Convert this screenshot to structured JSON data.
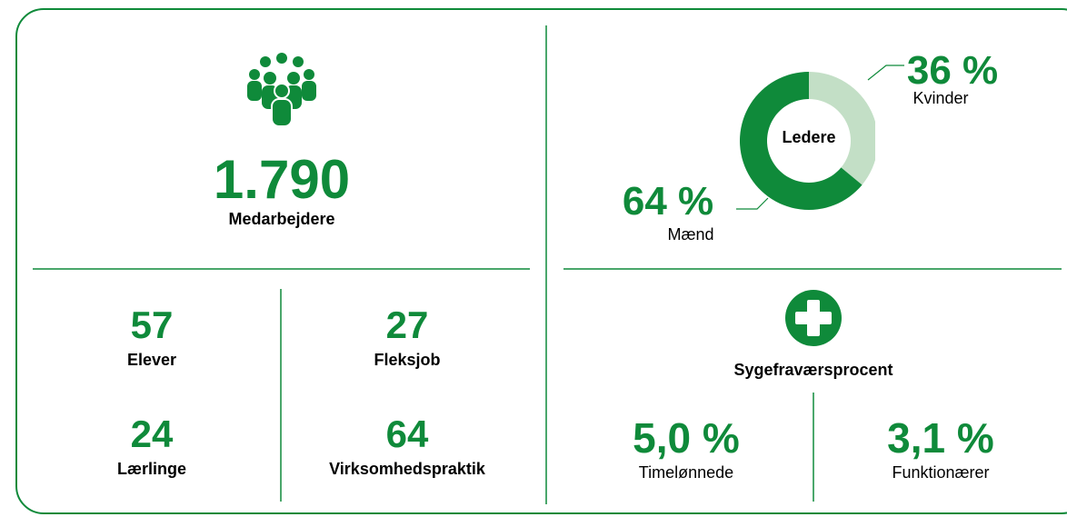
{
  "employees": {
    "value": "1.790",
    "label": "Medarbejdere"
  },
  "counts": [
    {
      "value": "57",
      "label": "Elever"
    },
    {
      "value": "27",
      "label": "Fleksjob"
    },
    {
      "value": "24",
      "label": "Lærlinge"
    },
    {
      "value": "64",
      "label": "Virksomhedspraktik"
    }
  ],
  "leaders": {
    "type": "donut",
    "title": "Ledere",
    "segments": [
      {
        "name": "Kvinder",
        "value": 36,
        "label": "36 %",
        "color": "#c3dfc6"
      },
      {
        "name": "Mænd",
        "value": 64,
        "label": "64 %",
        "color": "#0f8a3a"
      }
    ]
  },
  "sickness": {
    "title": "Sygefraværsprocent",
    "items": [
      {
        "value": "5,0 %",
        "label": "Timelønnede"
      },
      {
        "value": "3,1 %",
        "label": "Funktionærer"
      }
    ]
  }
}
